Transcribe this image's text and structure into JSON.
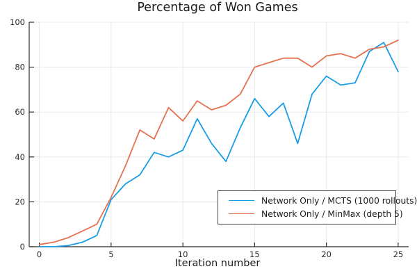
{
  "chart_data": {
    "type": "line",
    "title": "Percentage of Won Games",
    "xlabel": "Iteration number",
    "ylabel": "",
    "x": [
      0,
      1,
      2,
      3,
      4,
      5,
      6,
      7,
      8,
      9,
      10,
      11,
      12,
      13,
      14,
      15,
      16,
      17,
      18,
      19,
      20,
      21,
      22,
      23,
      24,
      25
    ],
    "series": [
      {
        "name": "Network Only / MCTS (1000 rollouts)",
        "color": "#189CE8",
        "values": [
          0,
          0,
          0.5,
          2,
          5,
          21,
          28,
          32,
          42,
          40,
          43,
          57,
          46,
          38,
          53,
          66,
          58,
          64,
          46,
          68,
          76,
          72,
          73,
          87,
          91,
          78
        ]
      },
      {
        "name": "Network Only / MinMax (depth 5)",
        "color": "#E5724F",
        "values": [
          1,
          2,
          4,
          7,
          10,
          22,
          36,
          52,
          48,
          62,
          56,
          65,
          61,
          63,
          68,
          80,
          82,
          84,
          84,
          80,
          85,
          86,
          84,
          88,
          89,
          92
        ]
      }
    ],
    "xlim": [
      0,
      25
    ],
    "ylim": [
      0,
      100
    ],
    "x_ticks": [
      "0",
      "5",
      "10",
      "15",
      "20",
      "25"
    ],
    "x_tick_values": [
      0,
      5,
      10,
      15,
      20,
      25
    ],
    "y_ticks": [
      "0",
      "20",
      "40",
      "60",
      "80",
      "100"
    ],
    "y_tick_values": [
      0,
      20,
      40,
      60,
      80,
      100
    ],
    "grid": true,
    "grid_color": "#E9E9E9",
    "axis_color": "#2B2B2B",
    "tick_label_color": "#2B2B2B",
    "legend_position": "bottom-right-inside"
  },
  "legend": {
    "items": [
      {
        "label": "Network Only / MCTS (1000 rollouts)",
        "color": "#189CE8"
      },
      {
        "label": "Network Only / MinMax (depth 5)",
        "color": "#E5724F"
      }
    ]
  }
}
